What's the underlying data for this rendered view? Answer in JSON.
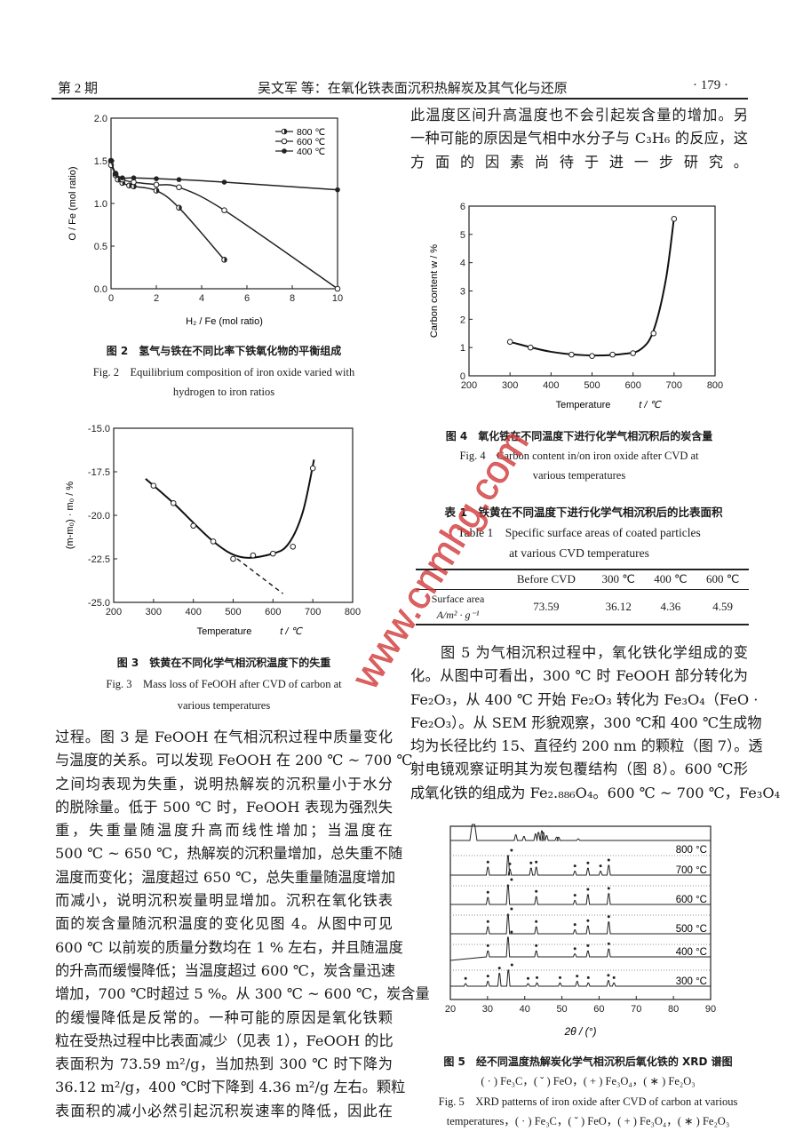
{
  "header": {
    "issue": "第 2 期",
    "running_title": "吴文军 等：在氧化铁表面沉积热解炭及其气化与还原",
    "page_number": "· 179 ·"
  },
  "watermark": "www.cnmhg.com",
  "fig2": {
    "caption_cn": "图 2　氢气与铁在不同比率下铁氧化物的平衡组成",
    "caption_en_1": "Fig. 2　Equilibrium composition of iron oxide varied with",
    "caption_en_2": "hydrogen to iron ratios"
  },
  "fig3": {
    "caption_cn": "图 3　铁黄在不同化学气相沉积温度下的失重",
    "caption_en_1": "Fig. 3　Mass loss of FeOOH after CVD of carbon at",
    "caption_en_2": "various temperatures"
  },
  "fig4": {
    "caption_cn": "图 4　氧化铁在不同温度下进行化学气相沉积后的炭含量",
    "caption_en_1": "Fig. 4　Carbon content in/on iron oxide after CVD at",
    "caption_en_2": "various temperatures"
  },
  "fig5": {
    "caption_cn": "图 5　经不同温度热解炭化学气相沉积后氧化铁的 XRD 谱图",
    "caption_cn_2": "( · ) Fe₃C，( ˇ ) FeO，( + ) Fe₃O₄，( ∗ ) Fe₂O₃",
    "caption_en_1": "Fig. 5　XRD patterns of iron oxide after CVD of carbon at various",
    "caption_en_2": "temperatures，( · ) Fe₃C，( ˇ ) FeO，( + ) Fe₃O₄，( ∗ ) Fe₂O₃"
  },
  "table1": {
    "title_cn": "表 1　铁黄在不同温度下进行化学气相沉积后的比表面积",
    "title_en_1": "Table 1　Specific surface areas of coated particles",
    "title_en_2": "at various CVD temperatures",
    "columns": [
      "",
      "Before CVD",
      "300 ℃",
      "400 ℃",
      "600 ℃"
    ],
    "row_label_1": "Surface area",
    "row_label_2": "A/m² · g⁻¹",
    "values": [
      "73.59",
      "36.12",
      "4.36",
      "4.59"
    ]
  },
  "left_text": [
    "过程。图 3 是 FeOOH 在气相沉积过程中质量变化",
    "与温度的关系。可以发现 FeOOH 在 200 ℃ ~ 700 ℃",
    "之间均表现为失重，说明热解炭的沉积量小于水分",
    "的脱除量。低于 500 ℃ 时，FeOOH 表现为强烈失",
    "重，失重量随温度升高而线性增加；当温度在",
    "500 ℃ ~ 650 ℃，热解炭的沉积量增加，总失重不随",
    "温度而变化；温度超过 650 ℃，总失重量随温度增加",
    "而减小，说明沉积炭量明显增加。沉积在氧化铁表",
    "面的炭含量随沉积温度的变化见图 4。从图中可见",
    "600 ℃ 以前炭的质量分数均在 1 % 左右，并且随温度",
    "的升高而缓慢降低；当温度超过 600 ℃，炭含量迅速",
    "增加，700 ℃时超过 5 %。从 300 ℃ ~ 600 ℃，炭含量",
    "的缓慢降低是反常的。一种可能的原因是氧化铁颗",
    "粒在受热过程中比表面减少（见表 1），FeOOH 的比",
    "表面积为 73.59 m²/g，当加热到 300 ℃ 时下降为",
    "36.12 m²/g，400 ℃时下降到 4.36 m²/g 左右。颗粒",
    "表面积的减小必然引起沉积炭速率的降低，因此在"
  ],
  "right_top_text": [
    "此温度区间升高温度也不会引起炭含量的增加。另",
    "一种可能的原因是气相中水分子与 C₃H₆ 的反应，这",
    "方面的因素尚待于进一步研究。"
  ],
  "right_para_text": [
    "图 5 为气相沉积过程中，氧化铁化学组成的变",
    "化。从图中可看出，300 ℃ 时 FeOOH 部分转化为",
    "Fe₂O₃，从 400 ℃ 开始 Fe₂O₃ 转化为 Fe₃O₄（FeO ·",
    "Fe₂O₃）。从 SEM 形貌观察，300 ℃和 400 ℃生成物",
    "均为长径比约 15、直径约 200 nm 的颗粒（图 7）。透",
    "射电镜观察证明其为炭包覆结构（图 8）。600 ℃形",
    "成氧化铁的组成为 Fe₂.₈₈₆O₄。600 ℃ ~ 700 ℃，Fe₃O₄"
  ],
  "chart_data": [
    {
      "id": "fig2",
      "type": "line",
      "xlabel": "H₂ / Fe (mol ratio)",
      "ylabel": "O / Fe (mol ratio)",
      "xlim": [
        0,
        10
      ],
      "ylim": [
        0,
        2
      ],
      "xticks": [
        0,
        2,
        4,
        6,
        8,
        10
      ],
      "xtick_labels": [
        "0",
        "2",
        "4",
        "6",
        "8",
        "10"
      ],
      "yticks": [
        0,
        0.5,
        1,
        1.5,
        2
      ],
      "ytick_labels": [
        "0.0",
        "0.5",
        "1.0",
        "1.5",
        "2.0"
      ],
      "legend": "top-right",
      "series": [
        {
          "name": "800 ℃",
          "marker": "half",
          "x": [
            0,
            0.2,
            0.3,
            0.5,
            0.8,
            1,
            2,
            3,
            5
          ],
          "y": [
            1.5,
            1.33,
            1.28,
            1.24,
            1.21,
            1.2,
            1.15,
            0.95,
            0.34
          ]
        },
        {
          "name": "600 ℃",
          "marker": "open",
          "x": [
            0,
            0.2,
            0.5,
            1,
            2,
            3,
            5,
            10
          ],
          "y": [
            1.45,
            1.35,
            1.28,
            1.25,
            1.22,
            1.19,
            0.92,
            0.0
          ]
        },
        {
          "name": "400 ℃",
          "marker": "filled",
          "x": [
            0,
            0.2,
            0.5,
            1,
            2,
            3,
            5,
            10
          ],
          "y": [
            1.5,
            1.35,
            1.3,
            1.3,
            1.29,
            1.28,
            1.25,
            1.16
          ]
        }
      ]
    },
    {
      "id": "fig3",
      "type": "line",
      "xlabel": "Temperature",
      "xunit": "t / ℃",
      "ylabel": "(m-m₀) · m₀ / %",
      "xlim": [
        200,
        800
      ],
      "ylim": [
        -25,
        -15
      ],
      "xticks": [
        200,
        300,
        400,
        500,
        600,
        700,
        800
      ],
      "xtick_labels": [
        "200",
        "300",
        "400",
        "500",
        "600",
        "700",
        "800"
      ],
      "yticks": [
        -25,
        -22.5,
        -20,
        -17.5,
        -15
      ],
      "ytick_labels": [
        "-25.0",
        "-22.5",
        "-20.0",
        "-17.5",
        "-15.0"
      ],
      "points": {
        "x": [
          300,
          350,
          400,
          450,
          500,
          550,
          600,
          650,
          700
        ],
        "y": [
          -18.3,
          -19.3,
          -20.6,
          -21.5,
          -22.5,
          -22.3,
          -22.2,
          -21.8,
          -17.3
        ]
      },
      "fit_curve": {
        "x": [
          280,
          350,
          450,
          520,
          600,
          640,
          675,
          703
        ],
        "y": [
          -17.9,
          -19.3,
          -21.5,
          -22.4,
          -22.2,
          -21.6,
          -19.8,
          -16.8
        ]
      },
      "extrapolation": {
        "x": [
          510,
          625
        ],
        "y": [
          -22.5,
          -24.5
        ]
      }
    },
    {
      "id": "fig4",
      "type": "line",
      "xlabel": "Temperature",
      "xunit": "t / ℃",
      "ylabel": "Carbon content    w / %",
      "xlim": [
        200,
        800
      ],
      "ylim": [
        0,
        6
      ],
      "xticks": [
        200,
        300,
        400,
        500,
        600,
        700,
        800
      ],
      "xtick_labels": [
        "200",
        "300",
        "400",
        "500",
        "600",
        "700",
        "800"
      ],
      "yticks": [
        0,
        1,
        2,
        3,
        4,
        5,
        6
      ],
      "ytick_labels": [
        "0",
        "1",
        "2",
        "3",
        "4",
        "5",
        "6"
      ],
      "points": {
        "x": [
          300,
          350,
          450,
          500,
          550,
          600,
          650,
          700
        ],
        "y": [
          1.2,
          1.0,
          0.75,
          0.7,
          0.75,
          0.8,
          1.5,
          5.55
        ]
      },
      "fit_curve": {
        "x": [
          300,
          400,
          500,
          580,
          620,
          650,
          680,
          700
        ],
        "y": [
          1.2,
          0.85,
          0.72,
          0.78,
          0.95,
          1.6,
          3.4,
          5.6
        ]
      }
    },
    {
      "id": "fig5",
      "type": "line",
      "xlabel": "2θ / (°)",
      "xlim": [
        20,
        90
      ],
      "xticks": [
        20,
        30,
        40,
        50,
        60,
        70,
        80,
        90
      ],
      "xtick_labels": [
        "20",
        "30",
        "40",
        "50",
        "60",
        "70",
        "80",
        "90"
      ],
      "series": [
        {
          "name": "800 ℃",
          "label": "800 °C",
          "peaks": [
            [
              26.2,
              1.0
            ],
            [
              37.6,
              0.35
            ],
            [
              39.8,
              0.25
            ],
            [
              42.9,
              0.4
            ],
            [
              43.7,
              0.5
            ],
            [
              44.6,
              0.6
            ],
            [
              45.0,
              0.5
            ],
            [
              45.9,
              0.3
            ],
            [
              48.6,
              0.2
            ],
            [
              49.1,
              0.2
            ],
            [
              54.4,
              0.1
            ]
          ]
        },
        {
          "name": "700 ℃",
          "label": "700 °C",
          "peaks": [
            [
              30.1,
              0.4
            ],
            [
              35.5,
              1.0
            ],
            [
              36.0,
              0.3
            ],
            [
              41.7,
              0.35
            ],
            [
              43.1,
              0.4
            ],
            [
              53.5,
              0.2
            ],
            [
              57.0,
              0.35
            ],
            [
              60.4,
              0.2
            ],
            [
              62.6,
              0.5
            ]
          ]
        },
        {
          "name": "600 ℃",
          "label": "600 °C",
          "peaks": [
            [
              30.1,
              0.35
            ],
            [
              35.5,
              1.0
            ],
            [
              43.1,
              0.4
            ],
            [
              53.5,
              0.2
            ],
            [
              57.0,
              0.5
            ],
            [
              62.6,
              0.55
            ]
          ]
        },
        {
          "name": "500 ℃",
          "label": "500 °C",
          "peaks": [
            [
              30.1,
              0.35
            ],
            [
              35.5,
              1.0
            ],
            [
              43.1,
              0.35
            ],
            [
              53.5,
              0.2
            ],
            [
              57.0,
              0.4
            ],
            [
              62.6,
              0.6
            ]
          ]
        },
        {
          "name": "400 ℃",
          "label": "400 °C",
          "peaks": [
            [
              30.1,
              0.3
            ],
            [
              35.5,
              1.0
            ],
            [
              43.1,
              0.3
            ],
            [
              53.5,
              0.15
            ],
            [
              57.0,
              0.3
            ],
            [
              62.6,
              0.4
            ]
          ]
        },
        {
          "name": "300 ℃",
          "label": "300 °C",
          "peaks": [
            [
              24.1,
              0.15
            ],
            [
              30.1,
              0.3
            ],
            [
              33.2,
              0.8
            ],
            [
              35.6,
              1.0
            ],
            [
              40.9,
              0.15
            ],
            [
              43.3,
              0.2
            ],
            [
              49.5,
              0.2
            ],
            [
              54.1,
              0.3
            ],
            [
              57.1,
              0.2
            ],
            [
              62.5,
              0.35
            ],
            [
              64.0,
              0.2
            ]
          ]
        }
      ]
    }
  ]
}
